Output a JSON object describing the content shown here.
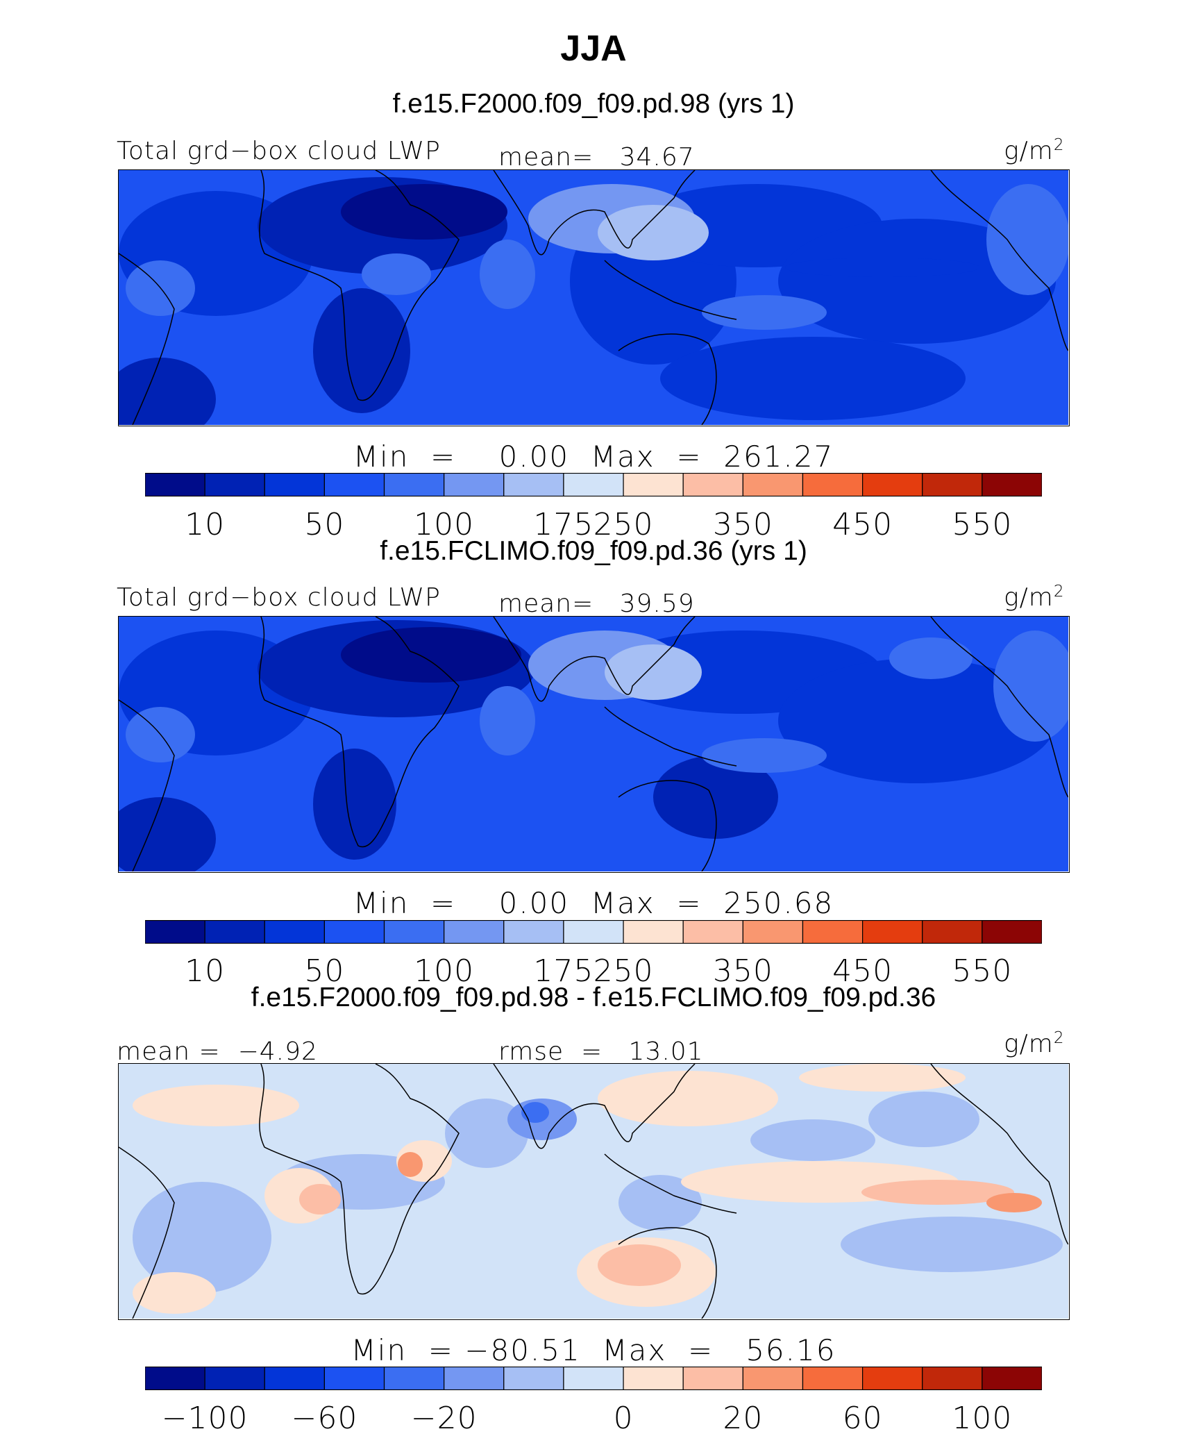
{
  "title": "JJA",
  "chart_data": [
    {
      "type": "heatmap",
      "title": "f.e15.F2000.f09_f09.pd.98 (yrs 1)",
      "variable_label": "Total grd−box cloud LWP",
      "stat_text": "mean=   34.67",
      "mean": 34.67,
      "units": "g/m",
      "units_exp": "2",
      "min_max_text": "Min  =    0.00  Max  =  261.27",
      "min": 0.0,
      "max": 261.27,
      "colorbar": {
        "colors": [
          "#000c8a",
          "#0022b4",
          "#0335d8",
          "#1c52f2",
          "#3b6ef2",
          "#7497f2",
          "#a6bff4",
          "#d2e3f8",
          "#fde3d2",
          "#fcbea6",
          "#f99770",
          "#f66c3c",
          "#e43d0f",
          "#c1280a",
          "#8c0505"
        ],
        "tick_labels": [
          "10",
          "50",
          "100",
          "175",
          "250",
          "350",
          "450",
          "550"
        ]
      }
    },
    {
      "type": "heatmap",
      "title": "f.e15.FCLIMO.f09_f09.pd.36 (yrs 1)",
      "variable_label": "Total grd−box cloud LWP",
      "stat_text": "mean=   39.59",
      "mean": 39.59,
      "units": "g/m",
      "units_exp": "2",
      "min_max_text": "Min  =    0.00  Max  =  250.68",
      "min": 0.0,
      "max": 250.68,
      "colorbar": {
        "colors": [
          "#000c8a",
          "#0022b4",
          "#0335d8",
          "#1c52f2",
          "#3b6ef2",
          "#7497f2",
          "#a6bff4",
          "#d2e3f8",
          "#fde3d2",
          "#fcbea6",
          "#f99770",
          "#f66c3c",
          "#e43d0f",
          "#c1280a",
          "#8c0505"
        ],
        "tick_labels": [
          "10",
          "50",
          "100",
          "175",
          "250",
          "350",
          "450",
          "550"
        ]
      }
    },
    {
      "type": "heatmap",
      "title": "f.e15.F2000.f09_f09.pd.98 - f.e15.FCLIMO.f09_f09.pd.36",
      "stat_left_text": "mean =  −4.92",
      "stat_mid_text": "rmse  =   13.01",
      "mean": -4.92,
      "rmse": 13.01,
      "units": "g/m",
      "units_exp": "2",
      "min_max_text": "Min  = −80.51  Max  =   56.16",
      "min": -80.51,
      "max": 56.16,
      "colorbar": {
        "colors": [
          "#000c8a",
          "#0022b4",
          "#0335d8",
          "#1c52f2",
          "#3b6ef2",
          "#7497f2",
          "#a6bff4",
          "#d2e3f8",
          "#fde3d2",
          "#fcbea6",
          "#f99770",
          "#f66c3c",
          "#e43d0f",
          "#c1280a",
          "#8c0505"
        ],
        "tick_labels": [
          "−100",
          "−60",
          "−20",
          "0",
          "20",
          "60",
          "100"
        ]
      }
    }
  ]
}
